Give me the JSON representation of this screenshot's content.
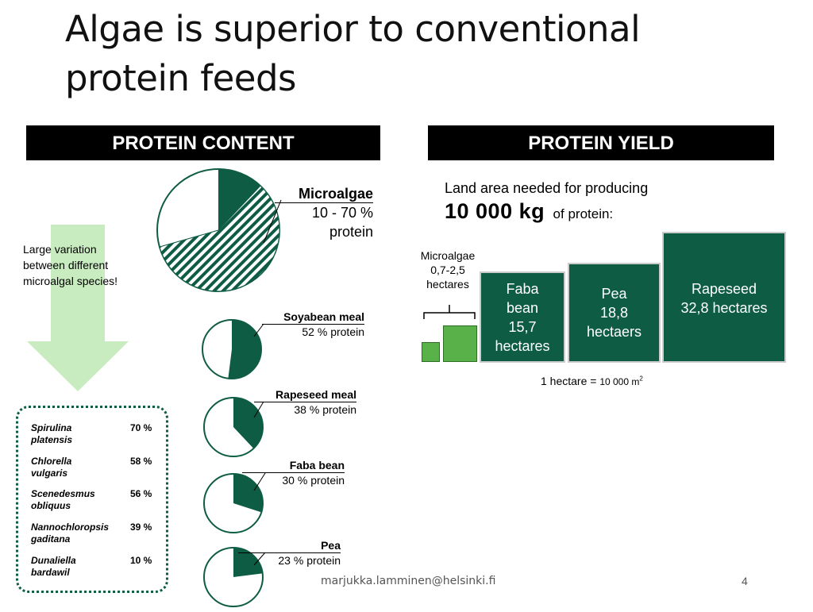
{
  "slide": {
    "title_line1": "Algae is superior to conventional",
    "title_line2": "protein feeds",
    "footer_email": "marjukka.lamminen@helsinki.fi",
    "page_number": "4"
  },
  "left_panel": {
    "heading": "PROTEIN CONTENT",
    "variation_note_lines": [
      "Large variation",
      "between different",
      "microalgal species!"
    ],
    "microalgae": {
      "name": "Microalgae",
      "range": "10 - 70 %",
      "unit": "protein"
    },
    "feeds": [
      {
        "name": "Soyabean meal",
        "label": "52 % protein",
        "protein_percent": 52
      },
      {
        "name": "Rapeseed meal",
        "label": "38 % protein",
        "protein_percent": 38
      },
      {
        "name": "Faba bean",
        "label": "30 % protein",
        "protein_percent": 30
      },
      {
        "name": "Pea",
        "label": "23 % protein",
        "protein_percent": 23
      }
    ],
    "species": [
      {
        "name_line1": "Spirulina",
        "name_line2": "platensis",
        "percent": "70 %"
      },
      {
        "name_line1": "Chlorella",
        "name_line2": "vulgaris",
        "percent": "58 %"
      },
      {
        "name_line1": "Scenedesmus",
        "name_line2": "obliquus",
        "percent": "56 %"
      },
      {
        "name_line1": "Nannochloropsis",
        "name_line2": "gaditana",
        "percent": "39 %"
      },
      {
        "name_line1": "Dunaliella",
        "name_line2": "bardawil",
        "percent": "10 %"
      }
    ]
  },
  "right_panel": {
    "heading": "PROTEIN YIELD",
    "intro_line1": "Land area needed for producing",
    "intro_amount": "10 000 kg",
    "intro_rest": "of protein:",
    "microalgae_lines": [
      "Microalgae",
      "0,7-2,5",
      "hectares"
    ],
    "crops": [
      {
        "lines": [
          "Faba",
          "bean",
          "15,7",
          "hectares"
        ],
        "hectares": 15.7
      },
      {
        "lines": [
          "Pea",
          "18,8",
          "hectaers"
        ],
        "hectares": 18.8
      },
      {
        "lines": [
          "Rapeseed",
          "32,8 hectares"
        ],
        "hectares": 32.8
      }
    ],
    "footnote_main": "1 hectare = ",
    "footnote_value": "10 000 m",
    "footnote_sup": "2"
  },
  "colors": {
    "dark_green": "#0f5c45",
    "light_green": "#c8ecbf",
    "bright_green": "#59b14a",
    "black": "#000000"
  }
}
